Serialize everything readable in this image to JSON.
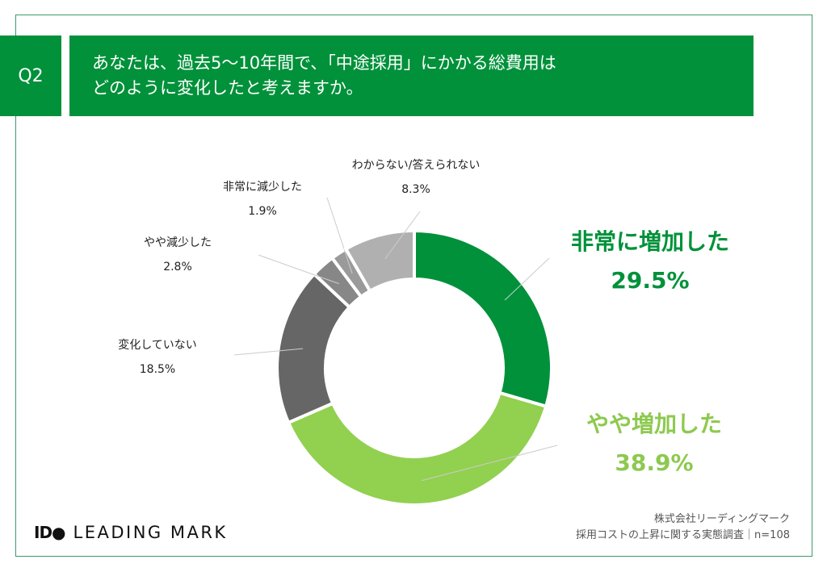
{
  "question": {
    "number": "Q2",
    "text": "あなたは、過去5〜10年間で、「中途採用」にかかる総費用は\nどのように変化したと考えますか。"
  },
  "chart_data": {
    "type": "pie",
    "donut": true,
    "categories": [
      "非常に増加した",
      "やや増加した",
      "変化していない",
      "やや減少した",
      "非常に減少した",
      "わからない/答えられない"
    ],
    "values": [
      29.5,
      38.9,
      18.5,
      2.8,
      1.9,
      8.3
    ],
    "value_labels": [
      "29.5%",
      "38.9%",
      "18.5%",
      "2.8%",
      "1.9%",
      "8.3%"
    ],
    "colors": [
      "#00913a",
      "#92d050",
      "#666666",
      "#878787",
      "#9a9a9a",
      "#b0b0b0"
    ],
    "start": "top",
    "direction": "clockwise"
  },
  "brand": {
    "name": "LEADING MARK",
    "mark": "ID●"
  },
  "source": {
    "company": "株式会社リーディングマーク",
    "survey": "採用コストの上昇に関する実態調査｜n=108"
  }
}
